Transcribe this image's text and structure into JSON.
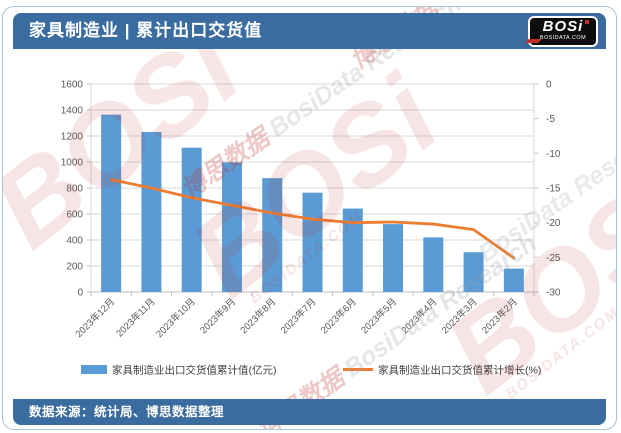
{
  "header": {
    "title": "家具制造业 | 累计出口交货值",
    "logo": {
      "name": "BOSi",
      "site": "BOSIDATA.COM"
    }
  },
  "footer": {
    "source": "数据来源：统计局、博思数据整理"
  },
  "watermarks": {
    "brand": "BOSi",
    "site": "BOSIDATA.COM",
    "cn": "博思数据",
    "en": "BosiData Research"
  },
  "chart_data": {
    "type": "bar",
    "title": "家具制造业 | 累计出口交货值",
    "categories": [
      "2023年12月",
      "2023年11月",
      "2023年10月",
      "2023年9月",
      "2023年8月",
      "2023年7月",
      "2023年6月",
      "2023年5月",
      "2023年4月",
      "2023年3月",
      "2023年2月"
    ],
    "series": [
      {
        "name": "家具制造业出口交货值累计值(亿元)",
        "type": "bar",
        "axis": "left",
        "color": "#5B9BD5",
        "values": [
          1364,
          1231,
          1110,
          997,
          876,
          764,
          642,
          522,
          420,
          306,
          180
        ]
      },
      {
        "name": "家具制造业出口交货值累计增长(%)",
        "type": "line",
        "axis": "right",
        "color": "#ED7D31",
        "values": [
          -13.8,
          -15.0,
          -16.4,
          -17.5,
          -18.6,
          -19.5,
          -20.0,
          -19.9,
          -20.2,
          -21.0,
          -25.1
        ]
      }
    ],
    "left_axis": {
      "min": 0,
      "max": 1600,
      "step": 200
    },
    "right_axis": {
      "min": -30,
      "max": 0,
      "step": 5
    },
    "grid": true,
    "legend_position": "bottom",
    "xlabel": "",
    "ylabel": ""
  }
}
